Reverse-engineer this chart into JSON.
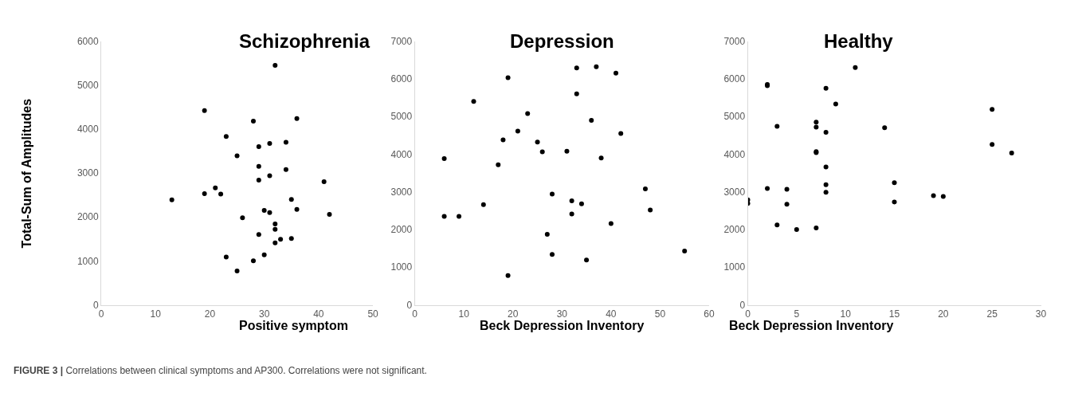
{
  "chart_data": [
    {
      "type": "scatter",
      "title": "Schizophrenia",
      "xlabel": "Positive symptom",
      "ylabel": "Total-Sum of Amplitudes",
      "xlim": [
        0,
        50
      ],
      "xticks": [
        0,
        10,
        20,
        30,
        40,
        50
      ],
      "ylim": [
        0,
        6000
      ],
      "yticks": [
        0,
        1000,
        2000,
        3000,
        4000,
        5000,
        6000
      ],
      "marker": "circle",
      "color": "#000000",
      "x": [
        32,
        19,
        28,
        36,
        23,
        31,
        34,
        29,
        25,
        29,
        34,
        31,
        29,
        41,
        21,
        19,
        22,
        13,
        35,
        36,
        30,
        31,
        42,
        26,
        32,
        32,
        29,
        35,
        33,
        32,
        23,
        30,
        28,
        25
      ],
      "values": [
        5450,
        4420,
        4180,
        4240,
        3830,
        3670,
        3700,
        3600,
        3390,
        3150,
        3080,
        2940,
        2840,
        2800,
        2660,
        2530,
        2520,
        2390,
        2400,
        2170,
        2150,
        2100,
        2060,
        1980,
        1840,
        1720,
        1600,
        1510,
        1490,
        1410,
        1090,
        1140,
        1000,
        770
      ],
      "annotations": [
        "FIGURE 3 | Correlations between clinical symptoms and AP300. Correlations were not significant."
      ]
    },
    {
      "type": "scatter",
      "title": "Depression",
      "xlabel": "Beck Depression Inventory",
      "xlim": [
        0,
        60
      ],
      "xticks": [
        0,
        10,
        20,
        30,
        40,
        50,
        60
      ],
      "ylim": [
        0,
        7000
      ],
      "yticks": [
        0,
        1000,
        2000,
        3000,
        4000,
        5000,
        6000,
        7000
      ],
      "marker": "circle",
      "color": "#000000",
      "x": [
        6,
        6,
        9,
        12,
        14,
        17,
        18,
        19,
        19,
        21,
        23,
        25,
        26,
        27,
        28,
        28,
        31,
        32,
        32,
        33,
        33,
        34,
        35,
        36,
        37,
        38,
        40,
        41,
        42,
        47,
        48,
        55
      ],
      "values": [
        3880,
        2350,
        2350,
        5400,
        2660,
        3720,
        4380,
        6030,
        780,
        4610,
        5080,
        4320,
        4060,
        1870,
        2940,
        1340,
        4080,
        2760,
        2410,
        6290,
        5600,
        2680,
        1190,
        4900,
        6320,
        3900,
        2160,
        6150,
        4550,
        3080,
        2520,
        1430
      ]
    },
    {
      "type": "scatter",
      "title": "Healthy",
      "xlabel": "Beck Depression Inventory",
      "xlim": [
        0,
        30
      ],
      "xticks": [
        0,
        5,
        10,
        15,
        20,
        25,
        30
      ],
      "ylim": [
        0,
        7000
      ],
      "yticks": [
        0,
        1000,
        2000,
        3000,
        4000,
        5000,
        6000,
        7000
      ],
      "marker": "circle",
      "color": "#000000",
      "x": [
        0,
        0,
        2,
        2,
        2,
        3,
        3,
        4,
        4,
        5,
        7,
        7,
        7,
        7,
        7,
        8,
        8,
        8,
        8,
        8,
        9,
        11,
        14,
        15,
        15,
        19,
        20,
        25,
        25,
        27
      ],
      "values": [
        2790,
        2690,
        5850,
        5820,
        3090,
        4740,
        2120,
        3070,
        2670,
        2000,
        4850,
        4720,
        4070,
        4040,
        2040,
        5750,
        4580,
        3660,
        3190,
        2990,
        5330,
        6300,
        4700,
        3240,
        2730,
        2900,
        2880,
        5190,
        4260,
        4030
      ]
    }
  ]
}
